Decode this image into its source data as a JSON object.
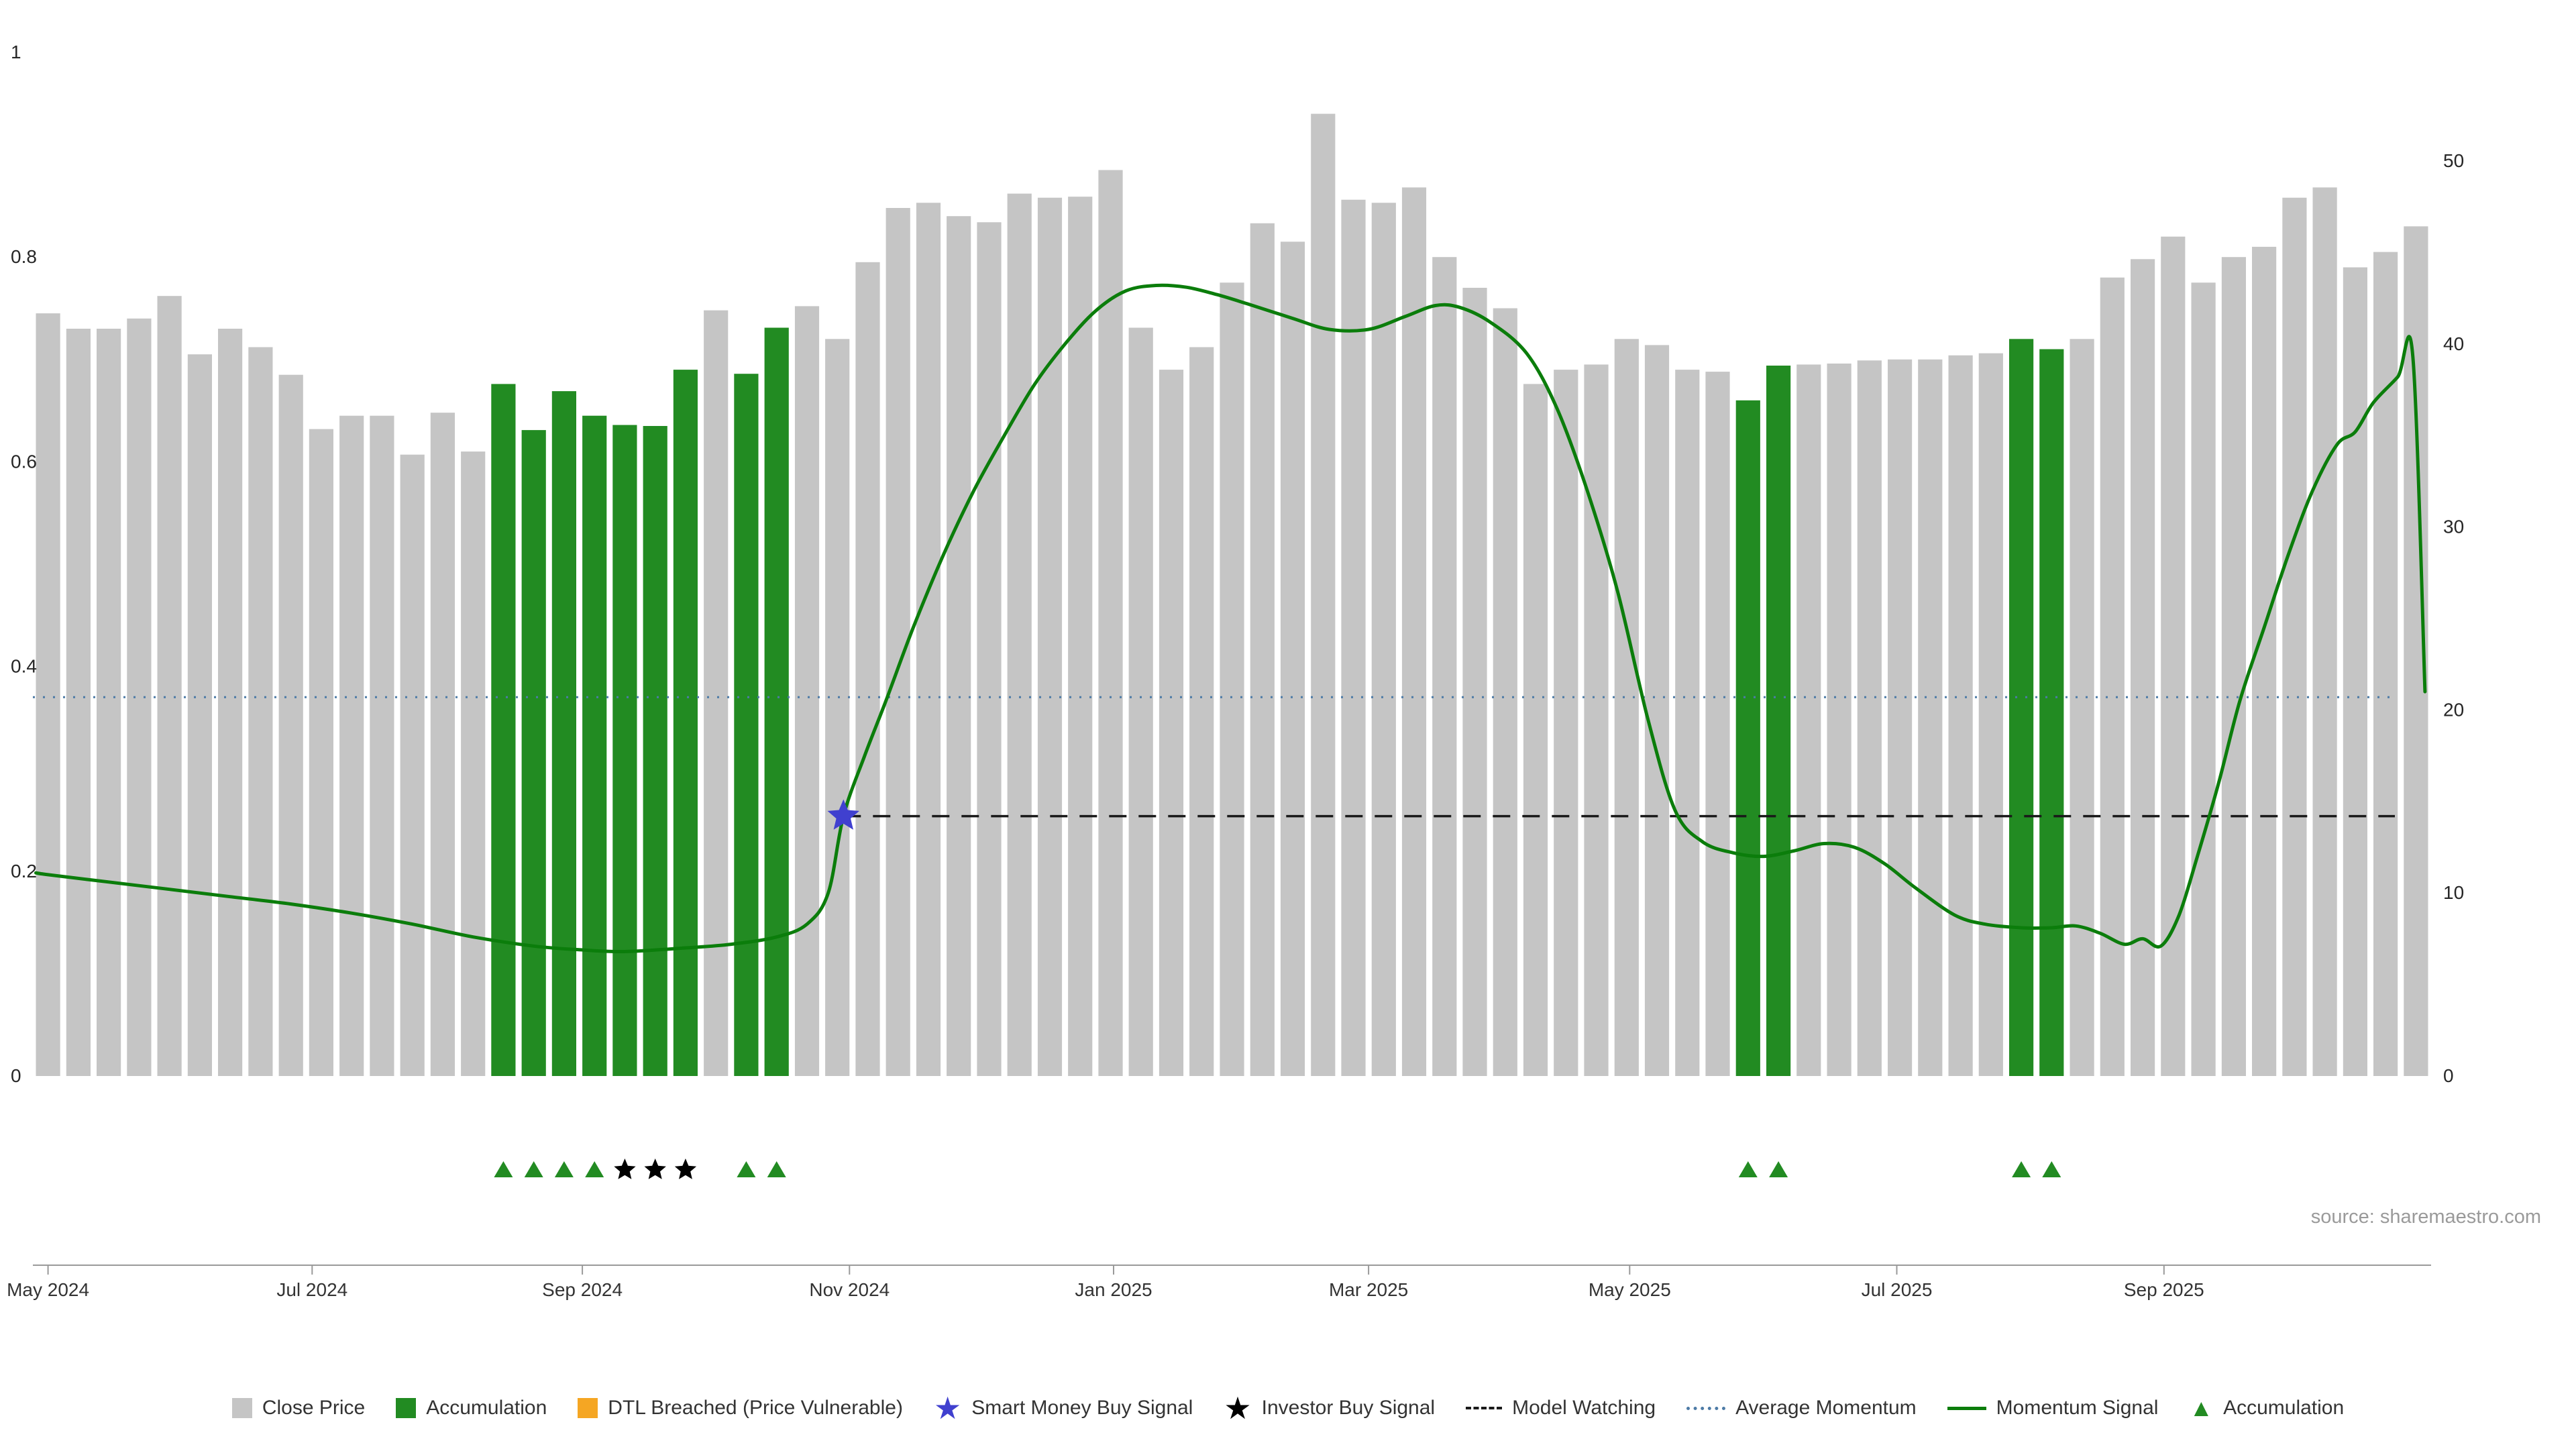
{
  "source_credit": "source: sharemaestro.com",
  "chart_data": {
    "type": "bar",
    "subtype": "weekly close price bars with momentum line overlay",
    "title": "",
    "x_axis": {
      "tick_labels": [
        "May 2024",
        "Jul 2024",
        "Sep 2024",
        "Nov 2024",
        "Jan 2025",
        "Mar 2025",
        "May 2025",
        "Jul 2025",
        "Sep 2025"
      ],
      "tick_indices": [
        0,
        8.7,
        17.6,
        26.4,
        35.1,
        43.5,
        52.1,
        60.9,
        69.7
      ]
    },
    "left_axis": {
      "tick_labels": [
        "0",
        "0.2",
        "0.4",
        "0.6",
        "0.8",
        "1"
      ],
      "tick_values": [
        0,
        0.2,
        0.4,
        0.6,
        0.8,
        1
      ],
      "range": [
        0,
        1.05
      ]
    },
    "right_axis": {
      "tick_labels": [
        "0",
        "10",
        "20",
        "30",
        "40",
        "50"
      ],
      "tick_values": [
        0,
        10,
        20,
        30,
        40,
        50
      ],
      "range": [
        0,
        57.5
      ]
    },
    "series": {
      "close_price": {
        "label": "Close Price",
        "color": "#c5c5c5",
        "values": [
          0.745,
          0.73,
          0.73,
          0.74,
          0.762,
          0.705,
          0.73,
          0.712,
          0.685,
          0.632,
          0.645,
          0.645,
          0.607,
          0.648,
          0.61,
          0.676,
          0.631,
          0.669,
          0.645,
          0.636,
          0.635,
          0.69,
          0.748,
          0.686,
          0.731,
          0.752,
          0.72,
          0.795,
          0.848,
          0.853,
          0.84,
          0.834,
          0.862,
          0.858,
          0.859,
          0.885,
          0.731,
          0.69,
          0.712,
          0.775,
          0.833,
          0.815,
          0.94,
          0.856,
          0.853,
          0.868,
          0.8,
          0.77,
          0.75,
          0.676,
          0.69,
          0.695,
          0.72,
          0.714,
          0.69,
          0.688,
          0.66,
          0.694,
          0.695,
          0.696,
          0.699,
          0.7,
          0.7,
          0.704,
          0.706,
          0.72,
          0.71,
          0.72,
          0.78,
          0.798,
          0.82,
          0.775,
          0.8,
          0.81,
          0.858,
          0.868,
          0.79,
          0.805,
          0.83
        ]
      },
      "accumulation": {
        "label": "Accumulation",
        "color": "#228B22",
        "bar_indices": [
          15,
          16,
          17,
          18,
          19,
          20,
          21,
          23,
          24,
          56,
          57,
          65,
          66
        ]
      },
      "momentum_signal": {
        "label": "Momentum Signal",
        "color": "#0b7d0b",
        "axis": "right",
        "points": [
          [
            -0.4,
            11.1
          ],
          [
            0,
            11
          ],
          [
            2,
            10.6
          ],
          [
            4,
            10.2
          ],
          [
            6,
            9.8
          ],
          [
            8,
            9.4
          ],
          [
            10,
            8.9
          ],
          [
            12,
            8.3
          ],
          [
            14,
            7.6
          ],
          [
            16,
            7.1
          ],
          [
            17.5,
            6.9
          ],
          [
            19,
            6.8
          ],
          [
            21,
            7.0
          ],
          [
            22.5,
            7.2
          ],
          [
            24,
            7.6
          ],
          [
            25,
            8.3
          ],
          [
            25.7,
            10
          ],
          [
            26.2,
            14.2
          ],
          [
            26.9,
            17.5
          ],
          [
            27.6,
            20.5
          ],
          [
            28.5,
            24.5
          ],
          [
            29.5,
            28.5
          ],
          [
            30.5,
            32
          ],
          [
            31.5,
            35
          ],
          [
            32.5,
            37.8
          ],
          [
            33.5,
            40
          ],
          [
            34.5,
            41.8
          ],
          [
            35.5,
            42.9
          ],
          [
            36.5,
            43.2
          ],
          [
            37.5,
            43.1
          ],
          [
            38.5,
            42.7
          ],
          [
            39.5,
            42.2
          ],
          [
            41,
            41.4
          ],
          [
            42.2,
            40.8
          ],
          [
            43.5,
            40.8
          ],
          [
            44.7,
            41.5
          ],
          [
            45.7,
            42.1
          ],
          [
            46.5,
            42
          ],
          [
            47.5,
            41.2
          ],
          [
            48.7,
            39.5
          ],
          [
            49.7,
            36.5
          ],
          [
            50.7,
            32
          ],
          [
            51.7,
            26.5
          ],
          [
            52.7,
            19.5
          ],
          [
            53.6,
            14.5
          ],
          [
            54.5,
            12.8
          ],
          [
            55.5,
            12.2
          ],
          [
            56.5,
            12
          ],
          [
            57.5,
            12.3
          ],
          [
            58.5,
            12.7
          ],
          [
            59.5,
            12.5
          ],
          [
            60.5,
            11.6
          ],
          [
            61.5,
            10.3
          ],
          [
            62.8,
            8.8
          ],
          [
            63.8,
            8.3
          ],
          [
            65,
            8.1
          ],
          [
            66,
            8.1
          ],
          [
            66.8,
            8.2
          ],
          [
            67.6,
            7.8
          ],
          [
            68.4,
            7.2
          ],
          [
            69,
            7.5
          ],
          [
            69.6,
            7.1
          ],
          [
            70.2,
            8.8
          ],
          [
            70.8,
            12
          ],
          [
            71.5,
            16
          ],
          [
            72.2,
            20.5
          ],
          [
            73,
            24.5
          ],
          [
            73.8,
            28.5
          ],
          [
            74.6,
            32
          ],
          [
            75.4,
            34.5
          ],
          [
            76,
            35.2
          ],
          [
            76.6,
            36.8
          ],
          [
            77.4,
            38.2
          ],
          [
            77.9,
            39.3
          ],
          [
            78.3,
            21
          ]
        ]
      },
      "average_momentum": {
        "label": "Average Momentum",
        "color": "#4d7ba6",
        "axis": "right",
        "value": 20.7,
        "style": "dotted"
      },
      "model_watching": {
        "label": "Model Watching",
        "color": "#1a1a1a",
        "axis": "right",
        "value": 14.2,
        "start_index": 26.2,
        "style": "dashed"
      },
      "smart_money_buy_signal": {
        "label": "Smart Money Buy Signal",
        "color": "#4040cf",
        "index": 26.2,
        "value": 14.2
      },
      "investor_buy_signal": {
        "label": "Investor Buy Signal",
        "color": "#000000",
        "marker_indices": [
          19,
          20,
          21
        ]
      },
      "accumulation_markers": {
        "label": "Accumulation",
        "color": "#228B22",
        "marker_indices": [
          15,
          16,
          17,
          18,
          23,
          24,
          56,
          57,
          65,
          66
        ]
      },
      "dtl_breached": {
        "label": "DTL Breached (Price Vulnerable)",
        "color": "#f5a623",
        "bar_indices": []
      }
    },
    "legend_position": "bottom-center",
    "grid": false
  },
  "legend": [
    {
      "type": "square",
      "color": "#c5c5c5",
      "label": "Close Price"
    },
    {
      "type": "square",
      "color": "#228B22",
      "label": "Accumulation"
    },
    {
      "type": "square",
      "color": "#f5a623",
      "label": "DTL Breached (Price Vulnerable)"
    },
    {
      "type": "star",
      "color": "#4040cf",
      "label": "Smart Money Buy Signal"
    },
    {
      "type": "star",
      "color": "#000000",
      "label": "Investor Buy Signal"
    },
    {
      "type": "dashed",
      "color": "#1a1a1a",
      "label": "Model Watching"
    },
    {
      "type": "dotted",
      "color": "#4d7ba6",
      "label": "Average Momentum"
    },
    {
      "type": "line",
      "color": "#0b7d0b",
      "label": "Momentum Signal"
    },
    {
      "type": "triangle",
      "color": "#228B22",
      "label": "Accumulation"
    }
  ]
}
